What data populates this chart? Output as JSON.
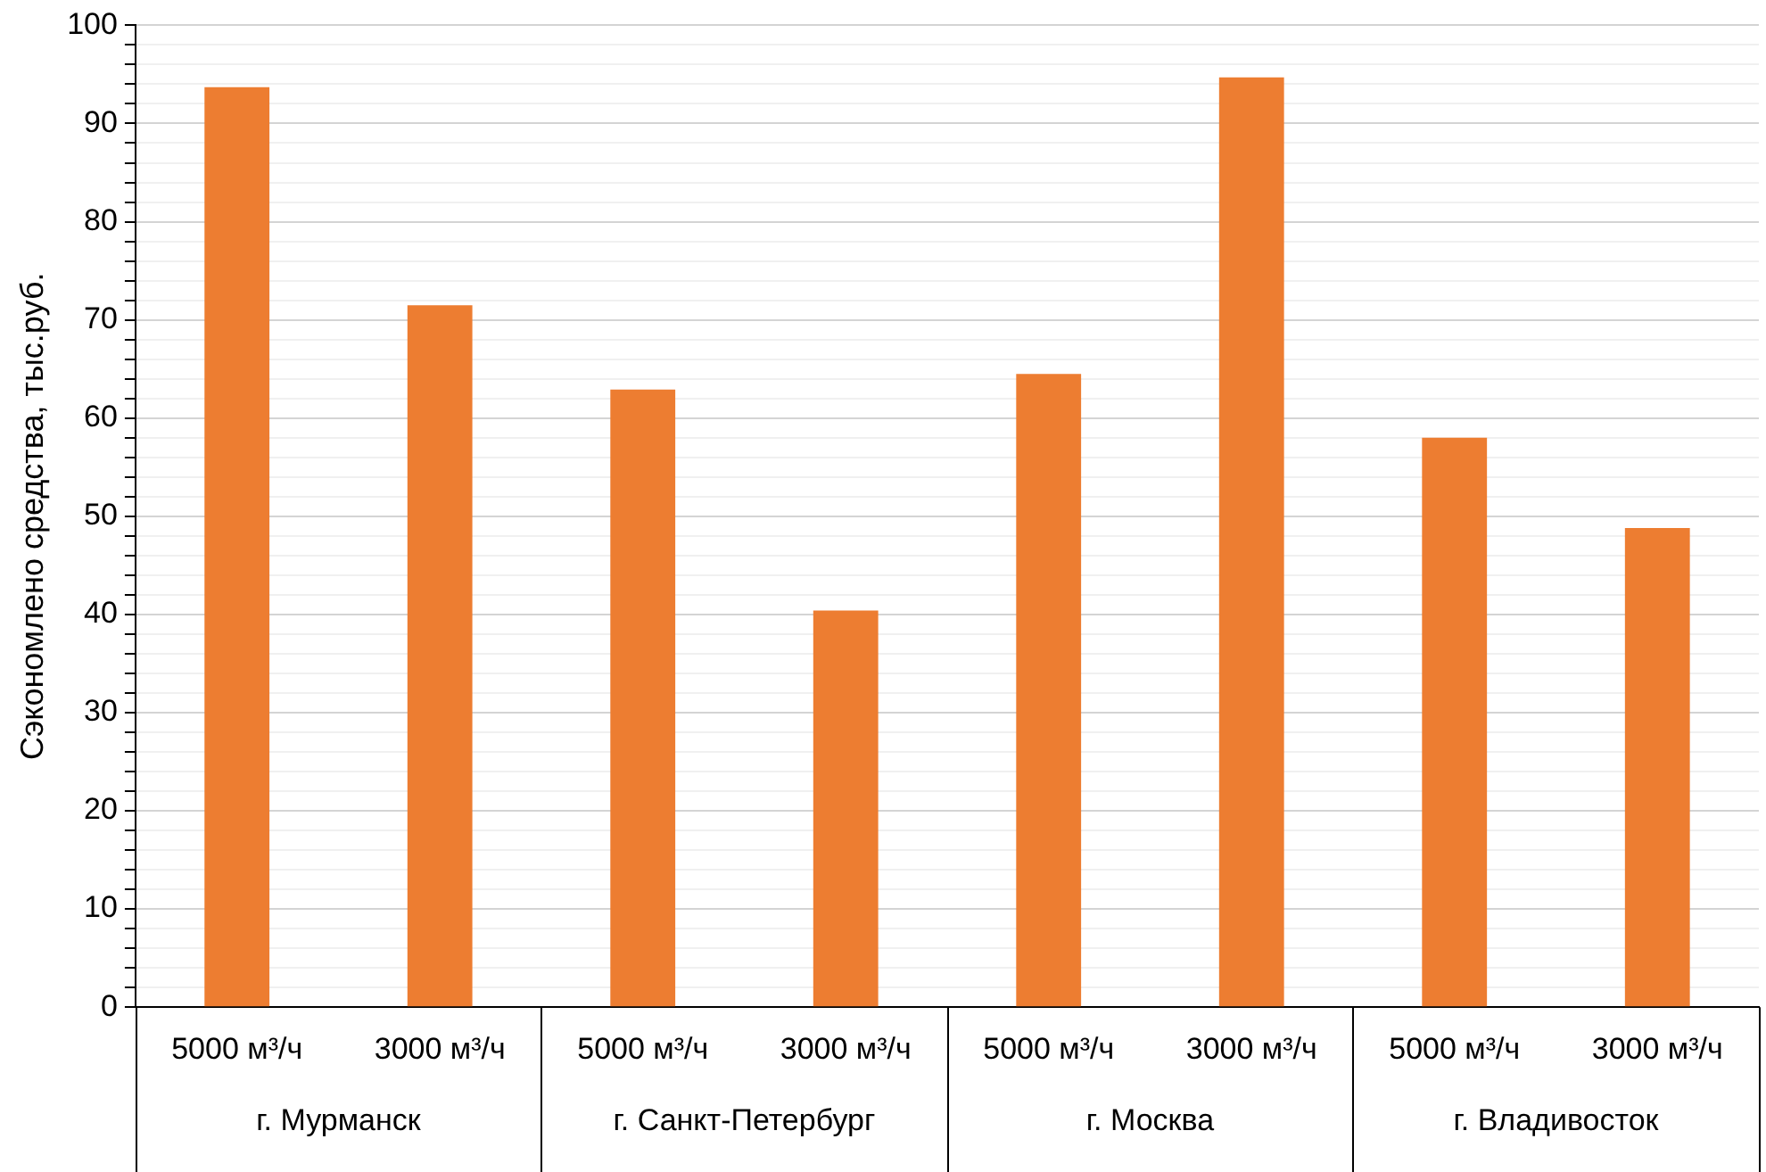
{
  "chart_data": {
    "type": "bar",
    "ylabel": "Сэкономлено средства, тыс.руб.",
    "categories": [
      "5000 м³/ч",
      "3000 м³/ч",
      "5000 м³/ч",
      "3000 м³/ч",
      "5000 м³/ч",
      "3000 м³/ч",
      "5000 м³/ч",
      "3000 м³/ч"
    ],
    "values": [
      93.7,
      71.5,
      62.9,
      40.4,
      64.5,
      94.7,
      58.0,
      48.8
    ],
    "color": "#ed7d31",
    "annotations": [
      "г. Мурманск",
      "г. Санкт-Петербург",
      "г. Москва",
      "г. Владивосток"
    ],
    "ylim": [
      0,
      100
    ],
    "yticks": [
      0,
      {
        "value": 2,
        "label": null
      },
      {
        "value": 4,
        "label": null
      },
      {
        "value": 6,
        "label": null
      },
      {
        "value": 8,
        "label": null
      },
      10,
      {
        "value": 12,
        "label": null
      },
      {
        "value": 14,
        "label": null
      },
      {
        "value": 16,
        "label": null
      },
      {
        "value": 18,
        "label": null
      },
      20,
      {
        "value": 22,
        "label": null
      },
      {
        "value": 24,
        "label": null
      },
      {
        "value": 26,
        "label": null
      },
      {
        "value": 28,
        "label": null
      },
      30,
      {
        "value": 32,
        "label": null
      },
      {
        "value": 34,
        "label": null
      },
      {
        "value": 36,
        "label": null
      },
      {
        "value": 38,
        "label": null
      },
      40,
      {
        "value": 42,
        "label": null
      },
      {
        "value": 44,
        "label": null
      },
      {
        "value": 46,
        "label": null
      },
      {
        "value": 48,
        "label": null
      },
      50,
      {
        "value": 52,
        "label": null
      },
      {
        "value": 54,
        "label": null
      },
      {
        "value": 56,
        "label": null
      },
      {
        "value": 58,
        "label": null
      },
      60,
      {
        "value": 62,
        "label": null
      },
      {
        "value": 64,
        "label": null
      },
      {
        "value": 66,
        "label": null
      },
      {
        "value": 68,
        "label": null
      },
      70,
      {
        "value": 72,
        "label": null
      },
      {
        "value": 74,
        "label": null
      },
      {
        "value": 76,
        "label": null
      },
      {
        "value": 78,
        "label": null
      },
      80,
      {
        "value": 82,
        "label": null
      },
      {
        "value": 84,
        "label": null
      },
      {
        "value": 86,
        "label": null
      },
      {
        "value": 88,
        "label": null
      },
      90,
      {
        "value": 92,
        "label": null
      },
      {
        "value": 94,
        "label": null
      },
      {
        "value": 96,
        "label": null
      },
      {
        "value": 98,
        "label": null
      },
      100
    ],
    "grid": true,
    "legend": false
  }
}
